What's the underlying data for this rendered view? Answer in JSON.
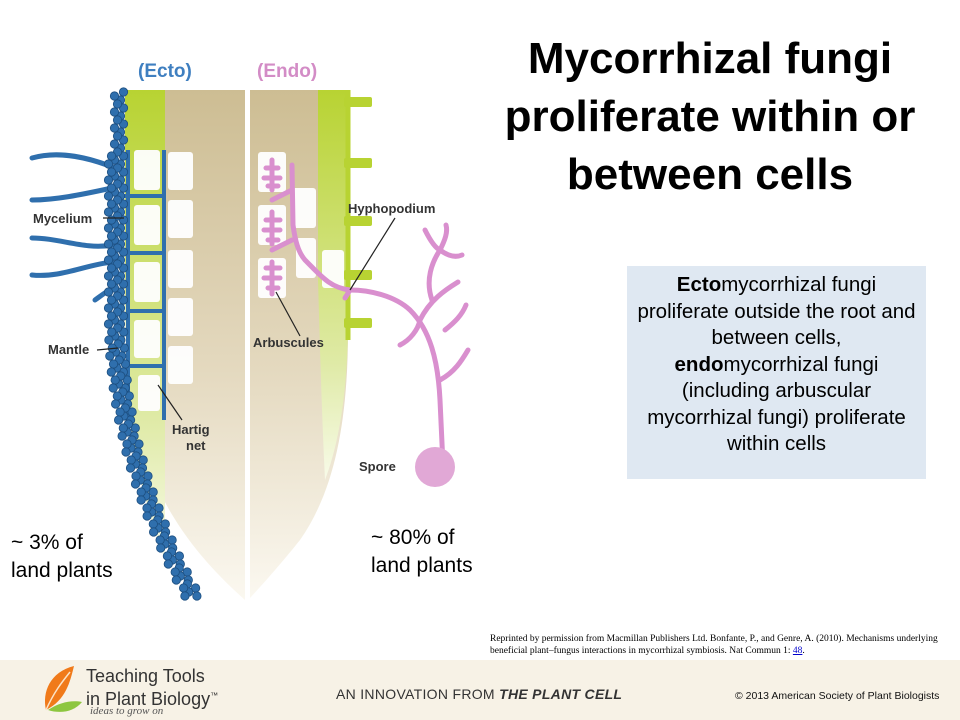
{
  "title": "Mycorrhizal fungi proliferate within or between cells",
  "diagram": {
    "ecto_label": "(Ecto)",
    "endo_label": "(Endo)",
    "labels": {
      "mycelium": "Mycelium",
      "mantle": "Mantle",
      "hartig_line1": "Hartig",
      "hartig_line2": "net",
      "hyphopodium": "Hyphopodium",
      "arbuscules": "Arbuscules",
      "spore": "Spore"
    },
    "colors": {
      "ecto": "#3f7fc0",
      "endo": "#d38cc6",
      "fungus_blue": "#2f6fad",
      "fungus_pink": "#d98fce"
    }
  },
  "info": {
    "p1_bold": "Ecto",
    "p1_rest": "mycorrhizal fungi proliferate outside the root and between cells,",
    "p2_bold": "endo",
    "p2_rest": "mycorrhizal fungi (including arbuscular mycorrhizal fungi) proliferate within cells"
  },
  "stats": {
    "ecto_line1": "~ 3% of",
    "ecto_line2": "land plants",
    "endo_line1": "~ 80% of",
    "endo_line2": "land plants"
  },
  "citation": {
    "text": "Reprinted by permission from Macmillan Publishers Ltd. Bonfante, P., and Genre, A. (2010). Mechanisms underlying beneficial plant–fungus interactions in mycorrhizal symbiosis. Nat Commun 1:",
    "link": "48",
    "tail": "."
  },
  "footer": {
    "logo_line1": "Teaching Tools",
    "logo_line2": "in Plant Biology",
    "logo_tm": "™",
    "tagline": "ideas to grow on",
    "innovation_prefix": "AN INNOVATION FROM",
    "innovation_bold": "THE PLANT CELL",
    "copyright": "© 2013 American Society of Plant Biologists"
  }
}
